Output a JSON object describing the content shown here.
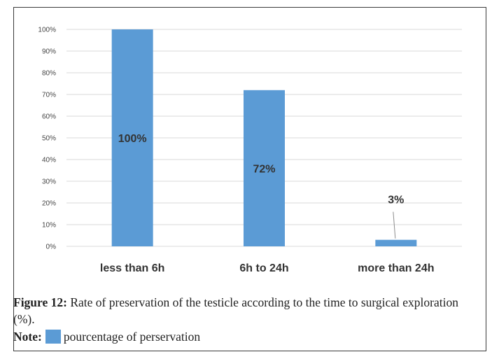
{
  "chart_data": {
    "type": "bar",
    "categories": [
      "less than 6h",
      "6h to 24h",
      "more than 24h"
    ],
    "values": [
      100,
      72,
      3
    ],
    "value_labels": [
      "100%",
      "72%",
      "3%"
    ],
    "yticks": [
      "0%",
      "10%",
      "20%",
      "30%",
      "40%",
      "50%",
      "60%",
      "70%",
      "80%",
      "90%",
      "100%"
    ],
    "ylim": [
      0,
      100
    ],
    "grid": true,
    "bar_color": "#5b9bd5"
  },
  "caption": {
    "figure_label": "Figure 12:",
    "text": "Rate of preservation of the testicle according to the time to surgical exploration (%).",
    "note_label": "Note:",
    "note_text": "pourcentage of perservation"
  }
}
